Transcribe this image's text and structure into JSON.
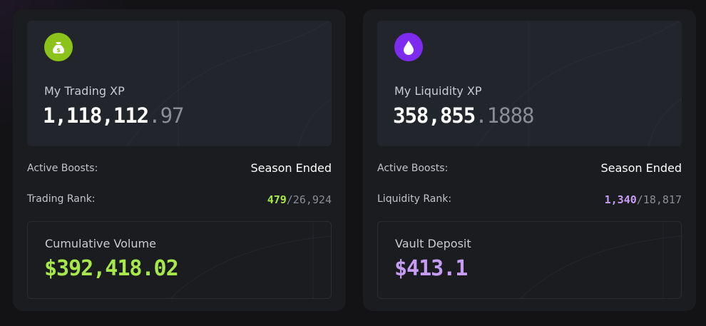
{
  "cards": [
    {
      "title": "My Trading XP",
      "xp_whole": "1,118,112",
      "xp_fraction": ".97",
      "boost_label": "Active Boosts:",
      "boost_value": "Season Ended",
      "rank_label": "Trading Rank:",
      "rank": "479",
      "rank_total": "/26,924",
      "stat_label": "Cumulative Volume",
      "stat_value": "$392,418.02"
    },
    {
      "title": "My Liquidity XP",
      "xp_whole": "358,855",
      "xp_fraction": ".1888",
      "boost_label": "Active Boosts:",
      "boost_value": "Season Ended",
      "rank_label": "Liquidity Rank:",
      "rank": "1,340",
      "rank_total": "/18,817",
      "stat_label": "Vault Deposit",
      "stat_value": "$413.1"
    }
  ]
}
